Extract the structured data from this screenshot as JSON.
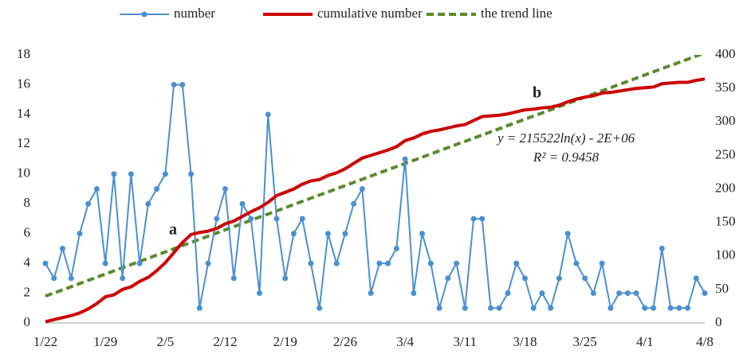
{
  "chart_data": {
    "type": "line",
    "categories": [
      "1/22",
      null,
      null,
      null,
      null,
      null,
      null,
      "1/29",
      null,
      null,
      null,
      null,
      null,
      null,
      "2/5",
      null,
      null,
      null,
      null,
      null,
      null,
      "2/12",
      null,
      null,
      null,
      null,
      null,
      null,
      "2/19",
      null,
      null,
      null,
      null,
      null,
      null,
      "2/26",
      null,
      null,
      null,
      null,
      null,
      null,
      "3/4",
      null,
      null,
      null,
      null,
      null,
      null,
      "3/11",
      null,
      null,
      null,
      null,
      null,
      null,
      "3/18",
      null,
      null,
      null,
      null,
      null,
      null,
      "3/25",
      null,
      null,
      null,
      null,
      null,
      null,
      "4/1",
      null,
      null,
      null,
      null,
      null,
      null,
      "4/8"
    ],
    "series": [
      {
        "name": "number",
        "color": "#4a90d0",
        "markers": true,
        "values": [
          4,
          3,
          5,
          3,
          6,
          8,
          9,
          4,
          10,
          3,
          10,
          4,
          8,
          9,
          10,
          16,
          16,
          10,
          1,
          4,
          7,
          9,
          3,
          8,
          7,
          2,
          14,
          7,
          3,
          6,
          7,
          4,
          1,
          6,
          4,
          6,
          8,
          9,
          2,
          4,
          4,
          5,
          11,
          2,
          6,
          4,
          1,
          3,
          4,
          1,
          7,
          7,
          1,
          1,
          2,
          4,
          3,
          1,
          2,
          1,
          3,
          6,
          4,
          3,
          2,
          4,
          1,
          2,
          2,
          2,
          1,
          1,
          5,
          1,
          1,
          1,
          3,
          2
        ]
      },
      {
        "name": "cumulative number",
        "color": "#cc0000",
        "axis": "y2",
        "values": [
          2,
          5,
          8,
          11,
          15,
          21,
          29,
          39,
          42,
          50,
          54,
          62,
          68,
          78,
          90,
          105,
          120,
          132,
          135,
          137,
          141,
          148,
          152,
          159,
          166,
          172,
          180,
          190,
          195,
          200,
          207,
          212,
          214,
          220,
          224,
          230,
          238,
          246,
          250,
          254,
          258,
          263,
          272,
          276,
          282,
          286,
          288,
          291,
          294,
          296,
          302,
          308,
          309,
          310,
          312,
          315,
          318,
          319,
          321,
          322,
          325,
          330,
          334,
          337,
          339,
          343,
          344,
          346,
          348,
          350,
          351,
          352,
          357,
          358,
          359,
          359,
          362,
          364
        ]
      }
    ],
    "trend": {
      "name": "the trend line",
      "color": "#5a8a2e",
      "axis": "y2",
      "x": [
        "1/22",
        "4/8"
      ],
      "values": [
        40,
        403
      ]
    },
    "ylim": [
      0,
      18
    ],
    "yticks": [
      0,
      2,
      4,
      6,
      8,
      10,
      12,
      14,
      16,
      18
    ],
    "y2lim": [
      0,
      400
    ],
    "y2ticks": [
      0,
      50,
      100,
      150,
      200,
      250,
      300,
      350,
      400
    ],
    "annotations": [
      {
        "text": "a"
      },
      {
        "text": "b"
      },
      {
        "text": "y = 215522ln(x) - 2E+06"
      },
      {
        "text": "R² = 0.9458"
      }
    ]
  }
}
